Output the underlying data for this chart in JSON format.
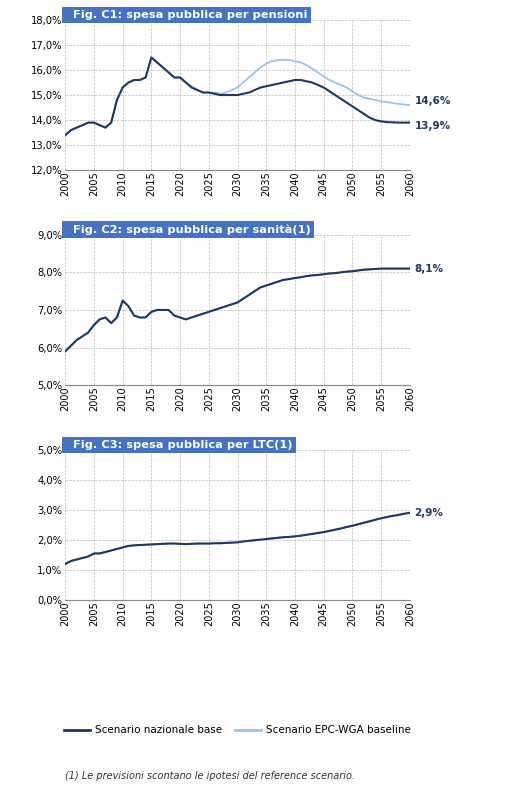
{
  "title_bg": "#4472c4",
  "title_text_color": "white",
  "grid_color": "#aaaaaa",
  "background_color": "white",
  "fig1_title": "Fig. C1: spesa pubblica per pensioni",
  "fig1_ylim": [
    12.0,
    18.0
  ],
  "fig1_yticks": [
    12.0,
    13.0,
    14.0,
    15.0,
    16.0,
    17.0,
    18.0
  ],
  "fig1_end_label1": "14,6%",
  "fig1_end_label2": "13,9%",
  "fig2_title": "Fig. C2: spesa pubblica per sanità(1)",
  "fig2_ylim": [
    5.0,
    9.0
  ],
  "fig2_yticks": [
    5.0,
    6.0,
    7.0,
    8.0,
    9.0
  ],
  "fig2_end_label1": "8,1%",
  "fig3_title": "Fig. C3: spesa pubblica per LTC(1)",
  "fig3_ylim": [
    0.0,
    5.0
  ],
  "fig3_yticks": [
    0.0,
    1.0,
    2.0,
    3.0,
    4.0,
    5.0
  ],
  "fig3_end_label1": "2,9%",
  "years": [
    2000,
    2001,
    2002,
    2003,
    2004,
    2005,
    2006,
    2007,
    2008,
    2009,
    2010,
    2011,
    2012,
    2013,
    2014,
    2015,
    2016,
    2017,
    2018,
    2019,
    2020,
    2021,
    2022,
    2023,
    2024,
    2025,
    2026,
    2027,
    2028,
    2029,
    2030,
    2031,
    2032,
    2033,
    2034,
    2035,
    2036,
    2037,
    2038,
    2039,
    2040,
    2041,
    2042,
    2043,
    2044,
    2045,
    2046,
    2047,
    2048,
    2049,
    2050,
    2051,
    2052,
    2053,
    2054,
    2055,
    2056,
    2057,
    2058,
    2059,
    2060
  ],
  "c1_nat": [
    13.4,
    13.6,
    13.7,
    13.8,
    13.9,
    13.9,
    13.8,
    13.7,
    13.9,
    14.8,
    15.3,
    15.5,
    15.6,
    15.6,
    15.7,
    16.5,
    16.3,
    16.1,
    15.9,
    15.7,
    15.7,
    15.5,
    15.3,
    15.2,
    15.1,
    15.1,
    15.05,
    15.0,
    15.0,
    15.0,
    15.0,
    15.05,
    15.1,
    15.2,
    15.3,
    15.35,
    15.4,
    15.45,
    15.5,
    15.55,
    15.6,
    15.6,
    15.55,
    15.5,
    15.4,
    15.3,
    15.15,
    15.0,
    14.85,
    14.7,
    14.55,
    14.4,
    14.25,
    14.1,
    14.0,
    13.95,
    13.92,
    13.91,
    13.9,
    13.9,
    13.9
  ],
  "c1_epc": [
    13.4,
    13.6,
    13.7,
    13.8,
    13.9,
    13.9,
    13.8,
    13.7,
    13.9,
    14.8,
    15.3,
    15.5,
    15.6,
    15.6,
    15.7,
    16.5,
    16.3,
    16.1,
    15.9,
    15.7,
    15.7,
    15.5,
    15.35,
    15.2,
    15.1,
    15.1,
    15.1,
    15.05,
    15.1,
    15.2,
    15.3,
    15.5,
    15.7,
    15.9,
    16.1,
    16.25,
    16.35,
    16.4,
    16.4,
    16.4,
    16.35,
    16.3,
    16.2,
    16.05,
    15.9,
    15.75,
    15.6,
    15.5,
    15.4,
    15.3,
    15.15,
    15.0,
    14.9,
    14.85,
    14.8,
    14.75,
    14.72,
    14.68,
    14.65,
    14.62,
    14.6
  ],
  "c2_nat": [
    5.9,
    6.05,
    6.2,
    6.3,
    6.4,
    6.6,
    6.75,
    6.8,
    6.65,
    6.8,
    7.25,
    7.1,
    6.85,
    6.8,
    6.8,
    6.95,
    7.0,
    7.0,
    7.0,
    6.85,
    6.8,
    6.75,
    6.8,
    6.85,
    6.9,
    6.95,
    7.0,
    7.05,
    7.1,
    7.15,
    7.2,
    7.3,
    7.4,
    7.5,
    7.6,
    7.65,
    7.7,
    7.75,
    7.8,
    7.82,
    7.85,
    7.87,
    7.9,
    7.92,
    7.93,
    7.95,
    7.97,
    7.98,
    8.0,
    8.02,
    8.03,
    8.05,
    8.07,
    8.08,
    8.09,
    8.1,
    8.1,
    8.1,
    8.1,
    8.1,
    8.1
  ],
  "c2_epc": [
    5.9,
    6.05,
    6.2,
    6.3,
    6.4,
    6.6,
    6.75,
    6.8,
    6.65,
    6.8,
    7.25,
    7.1,
    6.85,
    6.8,
    6.8,
    6.95,
    7.0,
    7.0,
    7.0,
    6.85,
    6.8,
    6.75,
    6.8,
    6.85,
    6.9,
    6.95,
    7.0,
    7.05,
    7.1,
    7.15,
    7.2,
    7.3,
    7.4,
    7.5,
    7.6,
    7.65,
    7.7,
    7.75,
    7.8,
    7.82,
    7.85,
    7.87,
    7.9,
    7.92,
    7.93,
    7.95,
    7.97,
    7.98,
    8.0,
    8.02,
    8.03,
    8.05,
    8.07,
    8.08,
    8.09,
    8.1,
    8.1,
    8.1,
    8.1,
    8.1,
    8.1
  ],
  "c3_nat": [
    1.2,
    1.3,
    1.35,
    1.4,
    1.45,
    1.55,
    1.55,
    1.6,
    1.65,
    1.7,
    1.75,
    1.8,
    1.82,
    1.83,
    1.84,
    1.85,
    1.86,
    1.87,
    1.88,
    1.88,
    1.87,
    1.86,
    1.87,
    1.88,
    1.88,
    1.88,
    1.89,
    1.89,
    1.9,
    1.91,
    1.92,
    1.95,
    1.97,
    1.99,
    2.01,
    2.03,
    2.05,
    2.07,
    2.09,
    2.1,
    2.12,
    2.14,
    2.17,
    2.2,
    2.23,
    2.26,
    2.3,
    2.34,
    2.38,
    2.43,
    2.47,
    2.52,
    2.57,
    2.62,
    2.67,
    2.72,
    2.76,
    2.8,
    2.83,
    2.87,
    2.9
  ],
  "c3_epc": [
    1.2,
    1.3,
    1.35,
    1.4,
    1.45,
    1.55,
    1.55,
    1.6,
    1.65,
    1.7,
    1.75,
    1.8,
    1.82,
    1.83,
    1.84,
    1.85,
    1.86,
    1.87,
    1.88,
    1.88,
    1.87,
    1.86,
    1.87,
    1.88,
    1.88,
    1.88,
    1.89,
    1.89,
    1.9,
    1.91,
    1.92,
    1.95,
    1.97,
    1.99,
    2.01,
    2.03,
    2.05,
    2.07,
    2.09,
    2.1,
    2.12,
    2.14,
    2.17,
    2.2,
    2.23,
    2.26,
    2.3,
    2.34,
    2.38,
    2.43,
    2.47,
    2.52,
    2.57,
    2.62,
    2.67,
    2.72,
    2.76,
    2.8,
    2.83,
    2.87,
    2.9
  ],
  "color_nat": "#1f3864",
  "color_epc": "#9dc3e6",
  "xticks": [
    2000,
    2005,
    2010,
    2015,
    2020,
    2025,
    2030,
    2035,
    2040,
    2045,
    2050,
    2055,
    2060
  ],
  "xlim": [
    2000,
    2060
  ],
  "legend_nat": "Scenario nazionale base",
  "legend_epc": "Scenario EPC-WGA baseline",
  "footnote": "(1) Le previsioni scontano le ipotesi del reference scenario."
}
